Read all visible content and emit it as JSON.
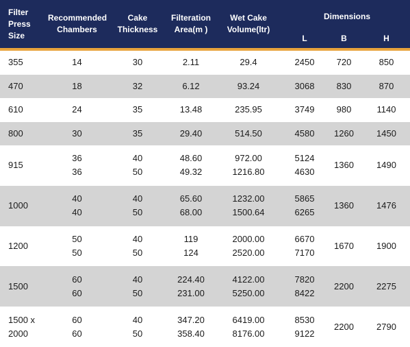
{
  "table": {
    "header": {
      "columns": [
        [
          "Filter",
          "Press",
          "Size"
        ],
        [
          "Recommended",
          "Chambers"
        ],
        [
          "Cake",
          "Thickness"
        ],
        [
          "Filteration",
          "Area(m )"
        ],
        [
          "Wet Cake",
          "Volume(ltr)"
        ]
      ],
      "group": "Dimensions",
      "sub": [
        "L",
        "B",
        "H"
      ]
    },
    "rows": [
      [
        [
          "355"
        ],
        [
          "14"
        ],
        [
          "30"
        ],
        [
          "2.11"
        ],
        [
          "29.4"
        ],
        [
          "2450"
        ],
        [
          "720"
        ],
        [
          "850"
        ]
      ],
      [
        [
          "470"
        ],
        [
          "18"
        ],
        [
          "32"
        ],
        [
          "6.12"
        ],
        [
          "93.24"
        ],
        [
          "3068"
        ],
        [
          "830"
        ],
        [
          "870"
        ]
      ],
      [
        [
          "610"
        ],
        [
          "24"
        ],
        [
          "35"
        ],
        [
          "13.48"
        ],
        [
          "235.95"
        ],
        [
          "3749"
        ],
        [
          "980"
        ],
        [
          "1140"
        ]
      ],
      [
        [
          "800"
        ],
        [
          "30"
        ],
        [
          "35"
        ],
        [
          "29.40"
        ],
        [
          "514.50"
        ],
        [
          "4580"
        ],
        [
          "1260"
        ],
        [
          "1450"
        ]
      ],
      [
        [
          "915"
        ],
        [
          "36",
          "36"
        ],
        [
          "40",
          "50"
        ],
        [
          "48.60",
          "49.32"
        ],
        [
          "972.00",
          "1216.80"
        ],
        [
          "5124",
          "4630"
        ],
        [
          "1360"
        ],
        [
          "1490"
        ]
      ],
      [
        [
          "1000"
        ],
        [
          "40",
          "40"
        ],
        [
          "40",
          "50"
        ],
        [
          "65.60",
          "68.00"
        ],
        [
          "1232.00",
          "1500.64"
        ],
        [
          "5865",
          "6265"
        ],
        [
          "1360"
        ],
        [
          "1476"
        ]
      ],
      [
        [
          "1200"
        ],
        [
          "50",
          "50"
        ],
        [
          "40",
          "50"
        ],
        [
          "119",
          "124"
        ],
        [
          "2000.00",
          "2520.00"
        ],
        [
          "6670",
          "7170"
        ],
        [
          "1670"
        ],
        [
          "1900"
        ]
      ],
      [
        [
          "1500"
        ],
        [
          "60",
          "60"
        ],
        [
          "40",
          "50"
        ],
        [
          "224.40",
          "231.00"
        ],
        [
          "4122.00",
          "5250.00"
        ],
        [
          "7820",
          "8422"
        ],
        [
          "2200"
        ],
        [
          "2275"
        ]
      ],
      [
        [
          "1500 x",
          "2000"
        ],
        [
          "60",
          "60"
        ],
        [
          "40",
          "50"
        ],
        [
          "347.20",
          "358.40"
        ],
        [
          "6419.00",
          "8176.00"
        ],
        [
          "8530",
          "9122"
        ],
        [
          "2200"
        ],
        [
          "2790"
        ]
      ]
    ]
  }
}
